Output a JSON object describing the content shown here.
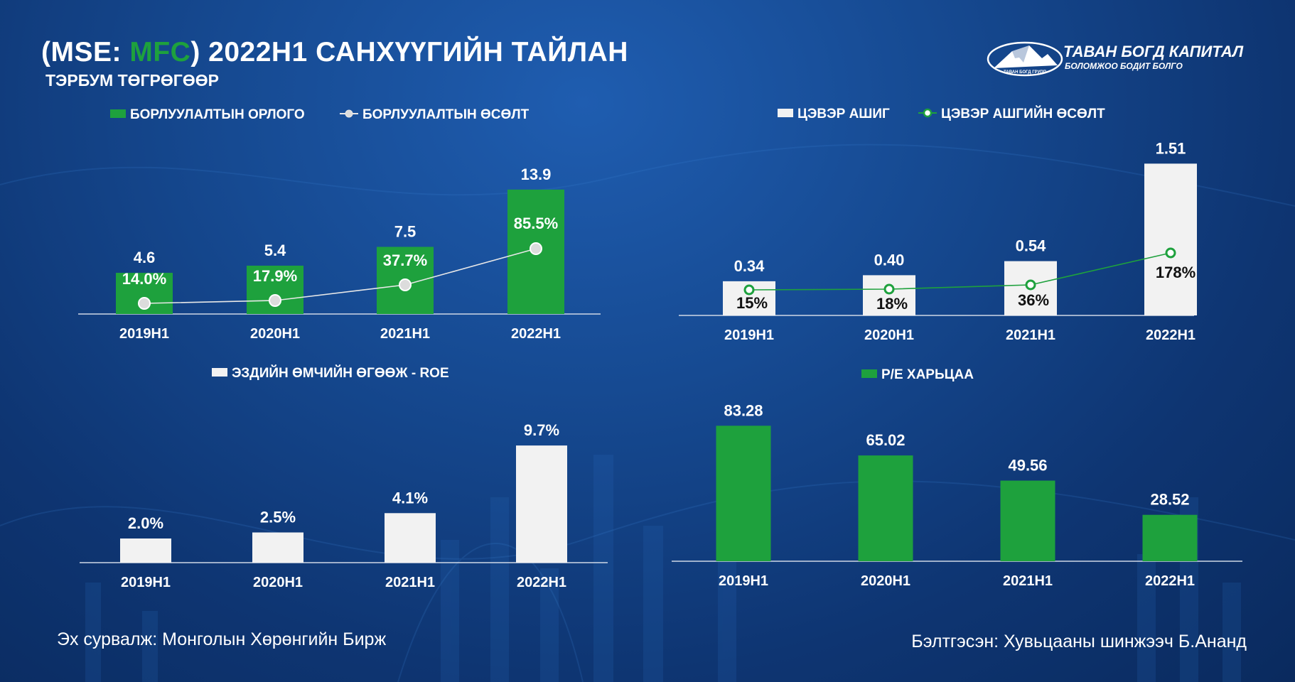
{
  "header": {
    "title_prefix": "(MSE: ",
    "title_ticker": "MFC",
    "title_suffix": ") 2022H1 САНХҮҮГИЙН ТАЙЛАН",
    "subtitle": "ТЭРБУМ ТӨГРӨГӨӨР"
  },
  "logo": {
    "brand": "ТАВАН БОГД КАПИТАЛ",
    "tagline": "БОЛОМЖОО БОДИТ БОЛГО",
    "mountain_text": "ТАВАН БОГД ГРУПП"
  },
  "footer": {
    "source": "Эх сурвалж: Монголын Хөрөнгийн Бирж",
    "author": "Бэлтгэсэн: Хувьцааны шинжээч Б.Ананд"
  },
  "colors": {
    "green": "#1ea13d",
    "white_bar": "#f2f2f2",
    "white_line": "#e8e8e8",
    "green_line": "#1ea13d",
    "axis": "#cfd8e6"
  },
  "chart_data": [
    {
      "id": "sales",
      "type": "bar",
      "categories": [
        "2019H1",
        "2020H1",
        "2021H1",
        "2022H1"
      ],
      "series": [
        {
          "name": "БОРЛУУЛАЛТЫН ОРЛОГО",
          "values": [
            4.6,
            5.4,
            7.5,
            13.9
          ],
          "labels": [
            "4.6",
            "5.4",
            "7.5",
            "13.9"
          ],
          "color": "#1ea13d",
          "kind": "bar"
        },
        {
          "name": "БОРЛУУЛАЛТЫН ӨСӨЛТ",
          "values": [
            14.0,
            17.9,
            37.7,
            85.5
          ],
          "labels": [
            "14.0%",
            "17.9%",
            "37.7%",
            "85.5%"
          ],
          "color": "#e8e8e8",
          "kind": "line"
        }
      ]
    },
    {
      "id": "profit",
      "type": "bar",
      "categories": [
        "2019H1",
        "2020H1",
        "2021H1",
        "2022H1"
      ],
      "series": [
        {
          "name": "ЦЭВЭР АШИГ",
          "values": [
            0.34,
            0.4,
            0.54,
            1.51
          ],
          "labels": [
            "0.34",
            "0.40",
            "0.54",
            "1.51"
          ],
          "color": "#f2f2f2",
          "kind": "bar"
        },
        {
          "name": "ЦЭВЭР АШГИЙН ӨСӨЛТ",
          "values": [
            15,
            18,
            36,
            178
          ],
          "labels": [
            "15%",
            "18%",
            "36%",
            "178%"
          ],
          "color": "#1ea13d",
          "kind": "line"
        }
      ]
    },
    {
      "id": "roe",
      "type": "bar",
      "categories": [
        "2019H1",
        "2020H1",
        "2021H1",
        "2022H1"
      ],
      "series": [
        {
          "name": "ЭЗДИЙН ӨМЧИЙН ӨГӨӨЖ - ROE",
          "values": [
            2.0,
            2.5,
            4.1,
            9.7
          ],
          "labels": [
            "2.0%",
            "2.5%",
            "4.1%",
            "9.7%"
          ],
          "color": "#f2f2f2",
          "kind": "bar"
        }
      ]
    },
    {
      "id": "pe",
      "type": "bar",
      "categories": [
        "2019H1",
        "2020H1",
        "2021H1",
        "2022H1"
      ],
      "series": [
        {
          "name": "P/E ХАРЬЦАА",
          "values": [
            83.28,
            65.02,
            49.56,
            28.52
          ],
          "labels": [
            "83.28",
            "65.02",
            "49.56",
            "28.52"
          ],
          "color": "#1ea13d",
          "kind": "bar"
        }
      ]
    }
  ]
}
